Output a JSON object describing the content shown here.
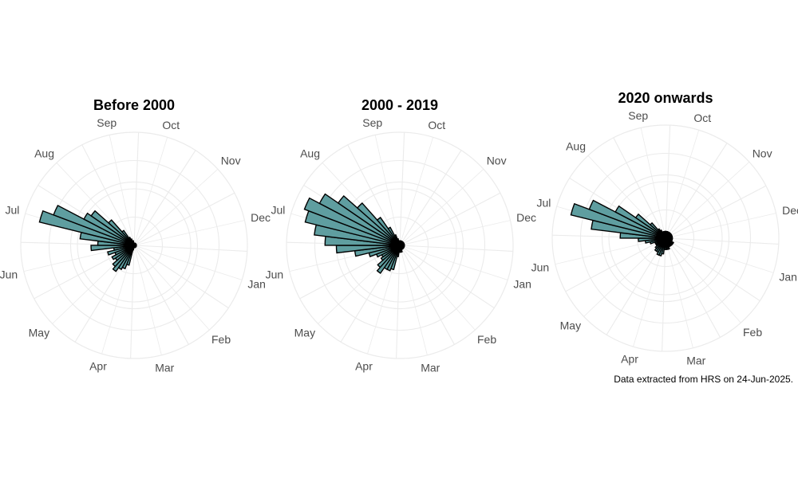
{
  "caption": "Data extracted from HRS on 24-Jun-2025.",
  "months": [
    "Jan",
    "Feb",
    "Mar",
    "Apr",
    "May",
    "Jun",
    "Jul",
    "Aug",
    "Sep",
    "Oct",
    "Nov",
    "Dec"
  ],
  "colors": {
    "bar_fill": "#5f9ea0",
    "bar_stroke": "#000000",
    "grid": "#ebebeb"
  },
  "chart_data": [
    {
      "type": "bar",
      "coord": "polar",
      "title": "Before 2000",
      "bin_days": 7,
      "r_max": 100,
      "grid_rings": [
        25,
        50,
        75,
        100
      ],
      "x": [
        1,
        8,
        15,
        22,
        29,
        36,
        43,
        50,
        57,
        64,
        71,
        78,
        85,
        92,
        99,
        106,
        113,
        120,
        127,
        134,
        141,
        148,
        155,
        162,
        169,
        176,
        183,
        190,
        197,
        204,
        211,
        218,
        225,
        232,
        239,
        246,
        253,
        260,
        267,
        274,
        281,
        288,
        295,
        302,
        309,
        316,
        323,
        330,
        337,
        344,
        351,
        358
      ],
      "values": [
        2,
        2,
        2,
        2,
        2,
        2,
        2,
        2,
        2,
        2,
        2,
        2,
        2,
        2,
        4,
        18,
        22,
        24,
        28,
        25,
        20,
        22,
        18,
        24,
        18,
        38,
        32,
        48,
        86,
        76,
        50,
        46,
        30,
        16,
        8,
        6,
        4,
        4,
        2,
        2,
        2,
        2,
        2,
        2,
        2,
        2,
        2,
        2,
        2,
        2,
        2,
        2
      ]
    },
    {
      "type": "bar",
      "coord": "polar",
      "title": "2000 - 2019",
      "bin_days": 7,
      "r_max": 100,
      "grid_rings": [
        25,
        50,
        75,
        100
      ],
      "x": [
        1,
        8,
        15,
        22,
        29,
        36,
        43,
        50,
        57,
        64,
        71,
        78,
        85,
        92,
        99,
        106,
        113,
        120,
        127,
        134,
        141,
        148,
        155,
        162,
        169,
        176,
        183,
        190,
        197,
        204,
        211,
        218,
        225,
        232,
        239,
        246,
        253,
        260,
        267,
        274,
        281,
        288,
        295,
        302,
        309,
        316,
        323,
        330,
        337,
        344,
        351,
        358
      ],
      "values": [
        4,
        4,
        4,
        4,
        4,
        4,
        4,
        4,
        4,
        4,
        6,
        6,
        6,
        6,
        10,
        22,
        24,
        24,
        30,
        26,
        20,
        18,
        22,
        28,
        40,
        56,
        66,
        76,
        86,
        90,
        80,
        66,
        50,
        30,
        18,
        10,
        6,
        4,
        4,
        4,
        4,
        4,
        4,
        4,
        4,
        4,
        4,
        4,
        4,
        4,
        4,
        4
      ]
    },
    {
      "type": "bar",
      "coord": "polar",
      "title": "2020 onwards",
      "bin_days": 7,
      "r_max": 100,
      "grid_rings": [
        25,
        50,
        75,
        100
      ],
      "x": [
        1,
        8,
        15,
        22,
        29,
        36,
        43,
        50,
        57,
        64,
        71,
        78,
        85,
        92,
        99,
        106,
        113,
        120,
        127,
        134,
        141,
        148,
        155,
        162,
        169,
        176,
        183,
        190,
        197,
        204,
        211,
        218,
        225,
        232,
        239,
        246,
        253,
        260,
        267,
        274,
        281,
        288,
        295,
        302,
        309,
        316,
        323,
        330,
        337,
        344,
        351,
        358
      ],
      "values": [
        6,
        6,
        6,
        6,
        8,
        8,
        8,
        8,
        8,
        8,
        10,
        10,
        10,
        10,
        14,
        16,
        16,
        14,
        14,
        12,
        10,
        10,
        10,
        14,
        18,
        24,
        40,
        66,
        86,
        72,
        50,
        32,
        18,
        10,
        8,
        6,
        6,
        6,
        6,
        6,
        6,
        6,
        6,
        6,
        6,
        6,
        6,
        6,
        6,
        6,
        6,
        6
      ]
    }
  ]
}
